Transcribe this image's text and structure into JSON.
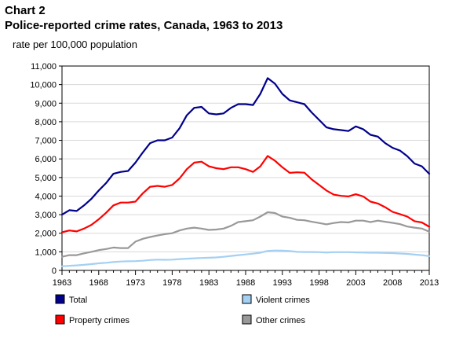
{
  "header": {
    "chart_label": "Chart 2",
    "title": "Police-reported crime rates, Canada, 1963 to 2013"
  },
  "chart_data": {
    "type": "line",
    "ylabel": "rate per 100,000 population",
    "xlabel": "",
    "ylim": [
      0,
      11000
    ],
    "xlim": [
      1963,
      2013
    ],
    "grid": "horizontal",
    "y_ticks": [
      "0",
      "1,000",
      "2,000",
      "3,000",
      "4,000",
      "5,000",
      "6,000",
      "7,000",
      "8,000",
      "9,000",
      "10,000",
      "11,000"
    ],
    "x_ticks": [
      "1963",
      "1968",
      "1973",
      "1978",
      "1983",
      "1988",
      "1993",
      "1998",
      "2003",
      "2008",
      "2013"
    ],
    "legend_position": "bottom",
    "x": [
      1963,
      1964,
      1965,
      1966,
      1967,
      1968,
      1969,
      1970,
      1971,
      1972,
      1973,
      1974,
      1975,
      1976,
      1977,
      1978,
      1979,
      1980,
      1981,
      1982,
      1983,
      1984,
      1985,
      1986,
      1987,
      1988,
      1989,
      1990,
      1991,
      1992,
      1993,
      1994,
      1995,
      1996,
      1997,
      1998,
      1999,
      2000,
      2001,
      2002,
      2003,
      2004,
      2005,
      2006,
      2007,
      2008,
      2009,
      2010,
      2011,
      2012,
      2013
    ],
    "series": [
      {
        "name": "Total",
        "color": "#00008b",
        "values": [
          3000,
          3240,
          3200,
          3500,
          3850,
          4300,
          4700,
          5200,
          5300,
          5350,
          5800,
          6350,
          6850,
          7000,
          7000,
          7150,
          7650,
          8350,
          8750,
          8800,
          8450,
          8400,
          8450,
          8750,
          8950,
          8950,
          8900,
          9500,
          10350,
          10050,
          9500,
          9150,
          9050,
          8950,
          8500,
          8100,
          7700,
          7600,
          7550,
          7500,
          7750,
          7600,
          7300,
          7200,
          6850,
          6600,
          6450,
          6150,
          5750,
          5600,
          5200
        ]
      },
      {
        "name": "Violent crimes",
        "color": "#a4d0f3",
        "values": [
          220,
          250,
          270,
          300,
          340,
          380,
          410,
          450,
          480,
          490,
          500,
          520,
          560,
          580,
          570,
          580,
          610,
          630,
          650,
          670,
          680,
          700,
          730,
          780,
          820,
          860,
          900,
          950,
          1050,
          1070,
          1060,
          1040,
          1000,
          990,
          990,
          980,
          960,
          980,
          980,
          980,
          970,
          960,
          950,
          950,
          940,
          930,
          910,
          890,
          850,
          820,
          770
        ]
      },
      {
        "name": "Property crimes",
        "color": "#ff0000",
        "values": [
          2050,
          2150,
          2100,
          2250,
          2450,
          2750,
          3100,
          3500,
          3650,
          3650,
          3700,
          4150,
          4500,
          4550,
          4500,
          4600,
          4950,
          5450,
          5800,
          5850,
          5600,
          5500,
          5450,
          5550,
          5550,
          5450,
          5300,
          5600,
          6160,
          5900,
          5550,
          5250,
          5280,
          5260,
          4900,
          4600,
          4300,
          4080,
          4010,
          3980,
          4100,
          3980,
          3700,
          3600,
          3400,
          3150,
          3030,
          2900,
          2650,
          2580,
          2350
        ]
      },
      {
        "name": "Other crimes",
        "color": "#999999",
        "values": [
          730,
          820,
          820,
          920,
          1000,
          1090,
          1150,
          1230,
          1200,
          1200,
          1550,
          1700,
          1800,
          1880,
          1950,
          2000,
          2150,
          2250,
          2300,
          2250,
          2180,
          2200,
          2250,
          2400,
          2600,
          2650,
          2700,
          2900,
          3130,
          3090,
          2900,
          2830,
          2720,
          2700,
          2620,
          2550,
          2480,
          2550,
          2600,
          2580,
          2680,
          2680,
          2600,
          2680,
          2620,
          2560,
          2490,
          2360,
          2300,
          2250,
          2080
        ]
      }
    ]
  }
}
